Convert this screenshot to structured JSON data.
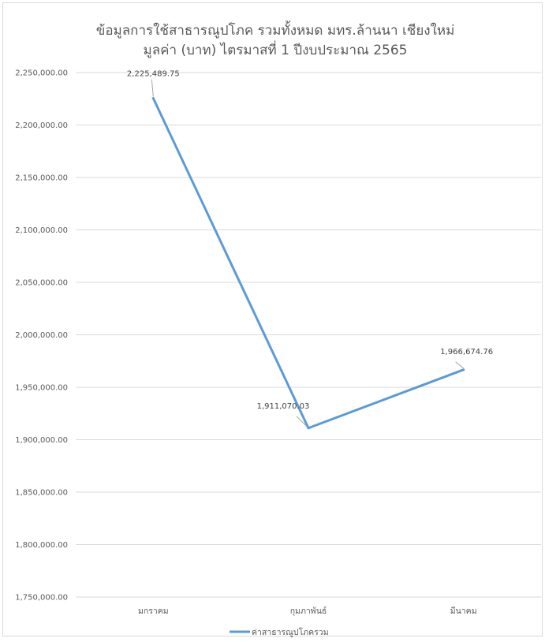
{
  "chart_data": {
    "type": "line",
    "title": "ข้อมูลการใช้สาธารณูปโภค รวมทั้งหมด มทร.ล้านนา เชียงใหม่",
    "subtitle": "มูลค่า (บาท) ไตรมาสที่ 1 ปีงบประมาณ 2565",
    "xlabel": "",
    "ylabel": "",
    "categories": [
      "มกราคม",
      "กุมภาพันธ์",
      "มีนาคม"
    ],
    "series": [
      {
        "name": "ค่าสาธารณูปโภครวม",
        "values": [
          2225489.75,
          1911070.03,
          1966674.76
        ],
        "data_labels": [
          "2,225,489.75",
          "1,911,070.03",
          "1,966,674.76"
        ],
        "color": "#5b9bd5"
      }
    ],
    "ylim": [
      1750000,
      2250000
    ],
    "y_ticks": [
      1750000,
      1800000,
      1850000,
      1900000,
      1950000,
      2000000,
      2050000,
      2100000,
      2150000,
      2200000,
      2250000
    ],
    "y_tick_labels": [
      "1,750,000.00",
      "1,800,000.00",
      "1,850,000.00",
      "1,900,000.00",
      "1,950,000.00",
      "2,000,000.00",
      "2,050,000.00",
      "2,100,000.00",
      "2,150,000.00",
      "2,200,000.00",
      "2,250,000.00"
    ],
    "grid": true,
    "legend": "bottom"
  },
  "colors": {
    "gridline": "#d9d9d9",
    "series": "#5b9bd5",
    "leader": "#a6a6a6"
  }
}
